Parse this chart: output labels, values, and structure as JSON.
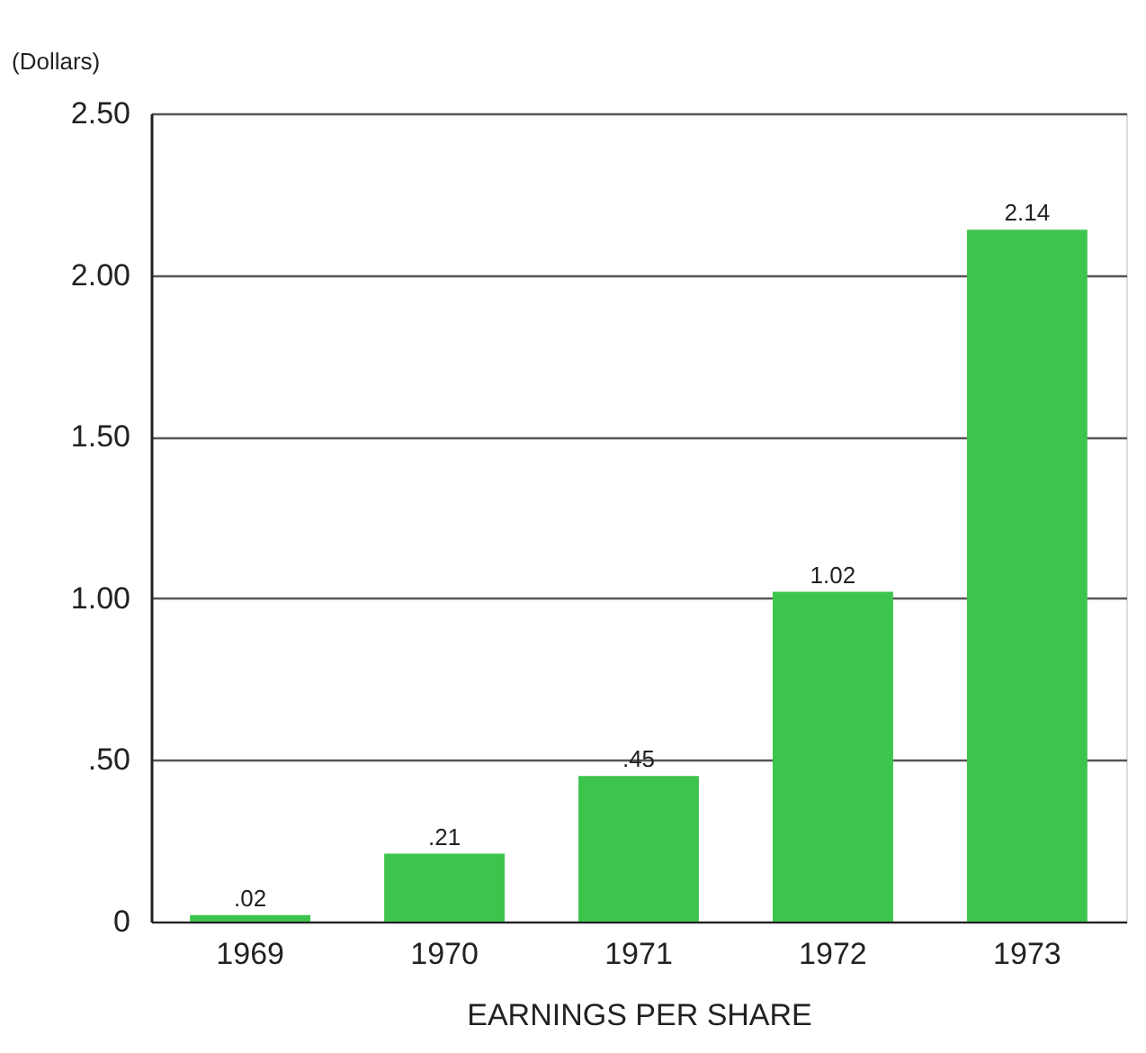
{
  "chart_data": {
    "type": "bar",
    "xlabel": "EARNINGS PER SHARE",
    "ylabel": "(Dollars)",
    "categories": [
      "1969",
      "1970",
      "1971",
      "1972",
      "1973"
    ],
    "values": [
      0.02,
      0.21,
      0.45,
      1.02,
      2.14
    ],
    "value_labels": [
      ".02",
      ".21",
      ".45",
      "1.02",
      "2.14"
    ],
    "color": "#3dc44c",
    "ylim": [
      0,
      2.5
    ],
    "yticks": [
      0,
      {
        "value": 0.5,
        "label": ".50"
      },
      {
        "value": 1,
        "label": "1.00"
      },
      {
        "value": 1.5,
        "label": "1.50"
      },
      {
        "value": 2,
        "label": "2.00"
      },
      {
        "value": 2.5,
        "label": "2.50"
      }
    ],
    "grid": "y"
  }
}
